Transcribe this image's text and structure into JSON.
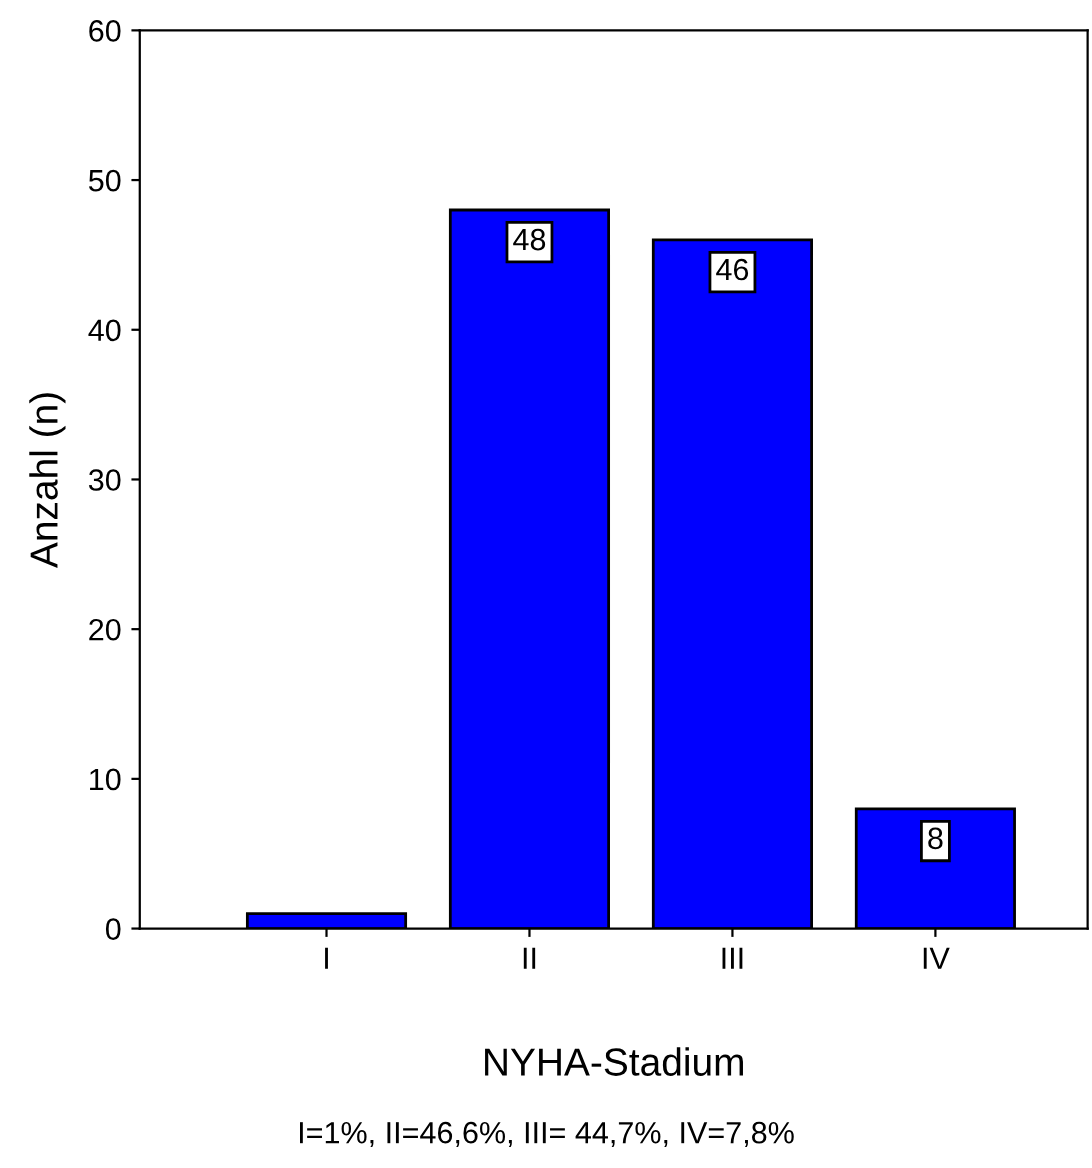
{
  "chart_data": {
    "type": "bar",
    "xlabel": "NYHA-Stadium",
    "ylabel": "Anzahl (n)",
    "categories": [
      "I",
      "II",
      "III",
      "IV"
    ],
    "values": [
      1,
      48,
      46,
      8
    ],
    "value_labels": [
      null,
      "48",
      "46",
      "8"
    ],
    "color": "#0000ff",
    "ylim": [
      0,
      60
    ],
    "yticks": [
      0,
      10,
      20,
      30,
      40,
      50,
      60
    ],
    "grid": false,
    "annotations": [
      "I=1%, II=46,6%, III= 44,7%, IV=7,8%"
    ]
  }
}
